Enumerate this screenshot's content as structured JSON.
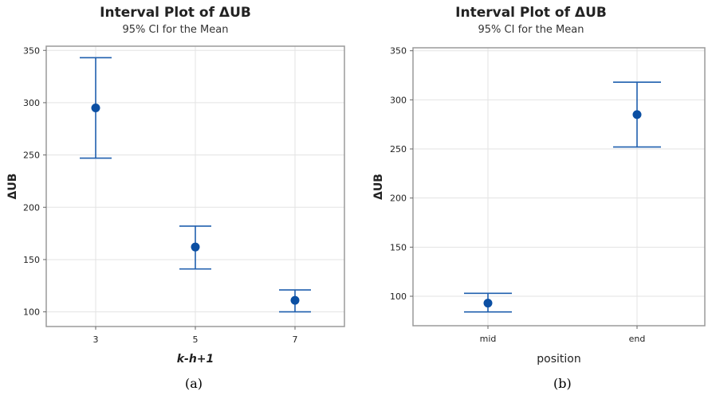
{
  "chart_data": [
    {
      "type": "interval",
      "title": "Interval Plot of ΔUB",
      "subtitle": "95% CI for the Mean",
      "xlabel": "k-h+1",
      "ylabel": "ΔUB",
      "categories": [
        "3",
        "5",
        "7"
      ],
      "mean": [
        295,
        162,
        111
      ],
      "ci_low": [
        247,
        141,
        100
      ],
      "ci_high": [
        343,
        182,
        121
      ],
      "yticks": [
        100,
        150,
        200,
        250,
        300,
        350
      ],
      "ylim": [
        86,
        354
      ],
      "grid": true,
      "color": "#1f5fae",
      "caption": "(a)"
    },
    {
      "type": "interval",
      "title": "Interval Plot of ΔUB",
      "subtitle": "95% CI for the Mean",
      "xlabel": "position",
      "ylabel": "ΔUB",
      "categories": [
        "mid",
        "end"
      ],
      "mean": [
        93,
        285
      ],
      "ci_low": [
        84,
        252
      ],
      "ci_high": [
        103,
        318
      ],
      "yticks": [
        100,
        150,
        200,
        250,
        300,
        350
      ],
      "ylim": [
        70,
        353
      ],
      "grid": true,
      "color": "#1f5fae",
      "caption": "(b)"
    }
  ]
}
